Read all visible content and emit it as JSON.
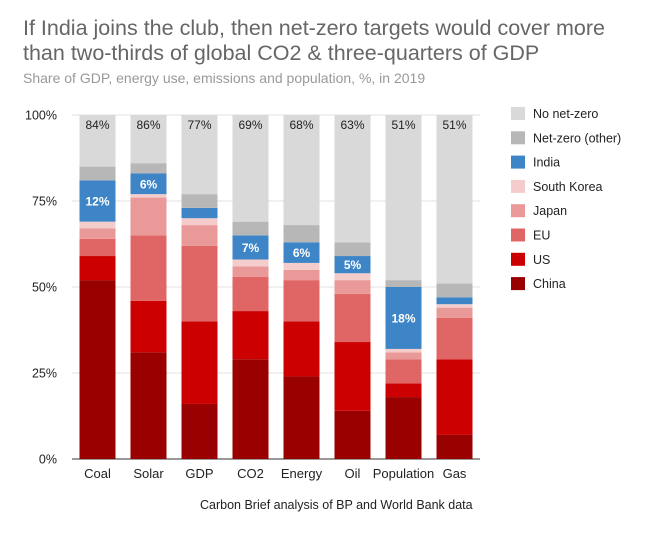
{
  "title": "If India joins the club, then net-zero targets would cover more than two-thirds of global CO2 & three-quarters of GDP",
  "subtitle": "Share of GDP, energy use, emissions and population, %, in 2019",
  "source": "Carbon Brief analysis of BP and World Bank data",
  "colors": {
    "China": "#990000",
    "US": "#cc0000",
    "EU": "#e06666",
    "Japan": "#ea9999",
    "South Korea": "#f4cccc",
    "India": "#3d85c6",
    "Net-zero (other)": "#b7b7b7",
    "No net-zero": "#d9d9d9"
  },
  "chart_data": {
    "type": "bar",
    "stacked": true,
    "categories": [
      "Coal",
      "Solar",
      "GDP",
      "CO2",
      "Energy",
      "Oil",
      "Population",
      "Gas"
    ],
    "y_ticks": [
      "0%",
      "25%",
      "50%",
      "75%",
      "100%"
    ],
    "ylim": [
      0,
      100
    ],
    "grid": true,
    "legend_position": "right",
    "series": [
      {
        "name": "China",
        "values": [
          52,
          31,
          16,
          29,
          24,
          14,
          18,
          7
        ]
      },
      {
        "name": "US",
        "values": [
          7,
          15,
          24,
          14,
          16,
          20,
          4,
          22
        ]
      },
      {
        "name": "EU",
        "values": [
          5,
          19,
          22,
          10,
          12,
          14,
          7,
          12
        ]
      },
      {
        "name": "Japan",
        "values": [
          3,
          11,
          6,
          3,
          3,
          4,
          2,
          3
        ]
      },
      {
        "name": "South Korea",
        "values": [
          2,
          1,
          2,
          2,
          2,
          2,
          1,
          1
        ]
      },
      {
        "name": "India",
        "values": [
          12,
          6,
          3,
          7,
          6,
          5,
          18,
          2
        ]
      },
      {
        "name": "Net-zero (other)",
        "values": [
          4,
          3,
          4,
          4,
          5,
          4,
          2,
          4
        ]
      },
      {
        "name": "No net-zero",
        "values": [
          15,
          14,
          23,
          31,
          32,
          37,
          48,
          49
        ]
      }
    ],
    "top_labels": [
      "84%",
      "86%",
      "77%",
      "69%",
      "68%",
      "63%",
      "51%",
      "51%"
    ],
    "india_labels": [
      "12%",
      "6%",
      "3%",
      "7%",
      "6%",
      "5%",
      "18%",
      "2%"
    ],
    "legend_order": [
      "No net-zero",
      "Net-zero (other)",
      "India",
      "South Korea",
      "Japan",
      "EU",
      "US",
      "China"
    ]
  }
}
